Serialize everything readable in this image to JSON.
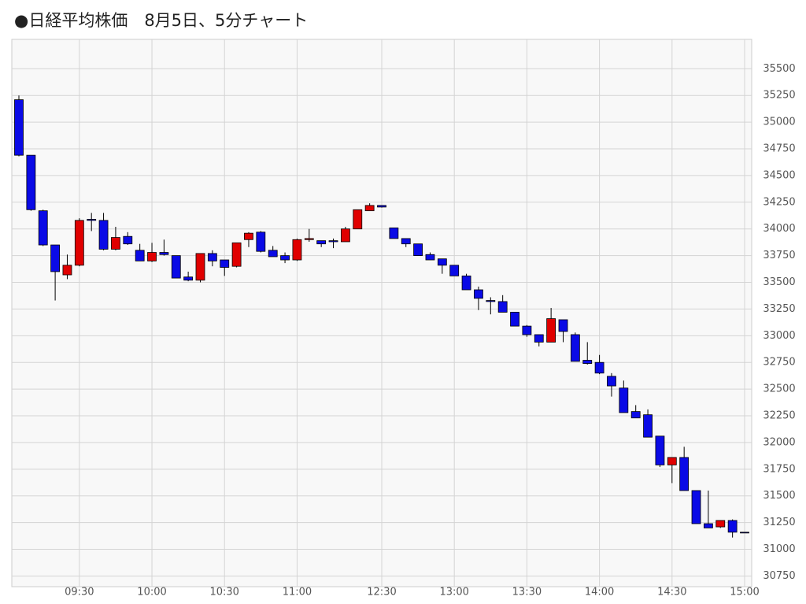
{
  "chart_data": {
    "type": "candlestick",
    "title": "●日経平均株価　8月5日、5分チャート",
    "categories": [
      null,
      null,
      null,
      null,
      null,
      "09:30",
      null,
      null,
      null,
      null,
      null,
      "10:00",
      null,
      null,
      null,
      null,
      null,
      "10:30",
      null,
      null,
      null,
      null,
      null,
      "11:00",
      null,
      null,
      null,
      null,
      null,
      null,
      "12:30",
      null,
      null,
      null,
      null,
      null,
      "13:00",
      null,
      null,
      null,
      null,
      null,
      "13:30",
      null,
      null,
      null,
      null,
      null,
      "14:00",
      null,
      null,
      null,
      null,
      null,
      "14:30",
      null,
      null,
      null,
      null,
      null,
      "15:00"
    ],
    "open": [
      35210,
      34690,
      34170,
      33850,
      33570,
      33660,
      34090,
      34080,
      33810,
      33930,
      33800,
      33700,
      33780,
      33750,
      33550,
      33520,
      33770,
      33710,
      33650,
      33900,
      33970,
      33800,
      33750,
      33710,
      33900,
      33890,
      33890,
      33880,
      34000,
      34170,
      34220,
      34010,
      33910,
      33860,
      33760,
      33720,
      33660,
      33560,
      33430,
      33330,
      33320,
      33220,
      33090,
      33010,
      32940,
      33150,
      33010,
      32770,
      32750,
      32620,
      32510,
      32290,
      32260,
      32060,
      31790,
      31860,
      31550,
      31240,
      31210,
      31270,
      31160
    ],
    "high": [
      35250,
      34690,
      34180,
      33850,
      33760,
      34100,
      34150,
      34150,
      34020,
      33970,
      33860,
      33870,
      33900,
      33750,
      33600,
      33770,
      33800,
      33710,
      33870,
      33970,
      33980,
      33840,
      33780,
      33910,
      34000,
      33890,
      33910,
      34020,
      34180,
      34240,
      34220,
      34010,
      33910,
      33860,
      33780,
      33720,
      33660,
      33580,
      33460,
      33360,
      33380,
      33220,
      33100,
      33010,
      33260,
      33150,
      33030,
      32940,
      32820,
      32650,
      32580,
      32350,
      32310,
      32060,
      31860,
      31960,
      31550,
      31550,
      31270,
      31280,
      31160
    ],
    "low": [
      34680,
      34170,
      33840,
      33330,
      33530,
      33650,
      33980,
      33800,
      33800,
      33850,
      33700,
      33690,
      33750,
      33540,
      33510,
      33500,
      33650,
      33560,
      33640,
      33830,
      33780,
      33740,
      33680,
      33700,
      33880,
      33830,
      33820,
      33880,
      34000,
      34170,
      34200,
      33910,
      33830,
      33750,
      33710,
      33580,
      33560,
      33430,
      33240,
      33200,
      33220,
      33090,
      32990,
      32900,
      32940,
      32940,
      32760,
      32730,
      32640,
      32430,
      32280,
      32230,
      32050,
      31770,
      31620,
      31550,
      31240,
      31200,
      31200,
      31110,
      31160
    ],
    "close": [
      34690,
      34180,
      33850,
      33600,
      33660,
      34080,
      34080,
      33810,
      33920,
      33860,
      33700,
      33780,
      33760,
      33540,
      33520,
      33770,
      33700,
      33640,
      33870,
      33960,
      33790,
      33740,
      33710,
      33900,
      33910,
      33860,
      33880,
      34000,
      34180,
      34220,
      34205,
      33910,
      33860,
      33750,
      33710,
      33660,
      33560,
      33430,
      33350,
      33320,
      33220,
      33090,
      33010,
      32940,
      33160,
      33040,
      32760,
      32740,
      32650,
      32530,
      32280,
      32230,
      32050,
      31790,
      31860,
      31550,
      31240,
      31200,
      31270,
      31160,
      31160
    ],
    "up_color": "#e00000",
    "down_color": "#0a0ae6",
    "ylim": [
      30650,
      35775
    ],
    "yticks": [
      30750,
      31000,
      31250,
      31500,
      31750,
      32000,
      32250,
      32500,
      32750,
      33000,
      33250,
      33500,
      33750,
      34000,
      34250,
      34500,
      34750,
      35000,
      35250,
      35500
    ],
    "grid": true
  }
}
